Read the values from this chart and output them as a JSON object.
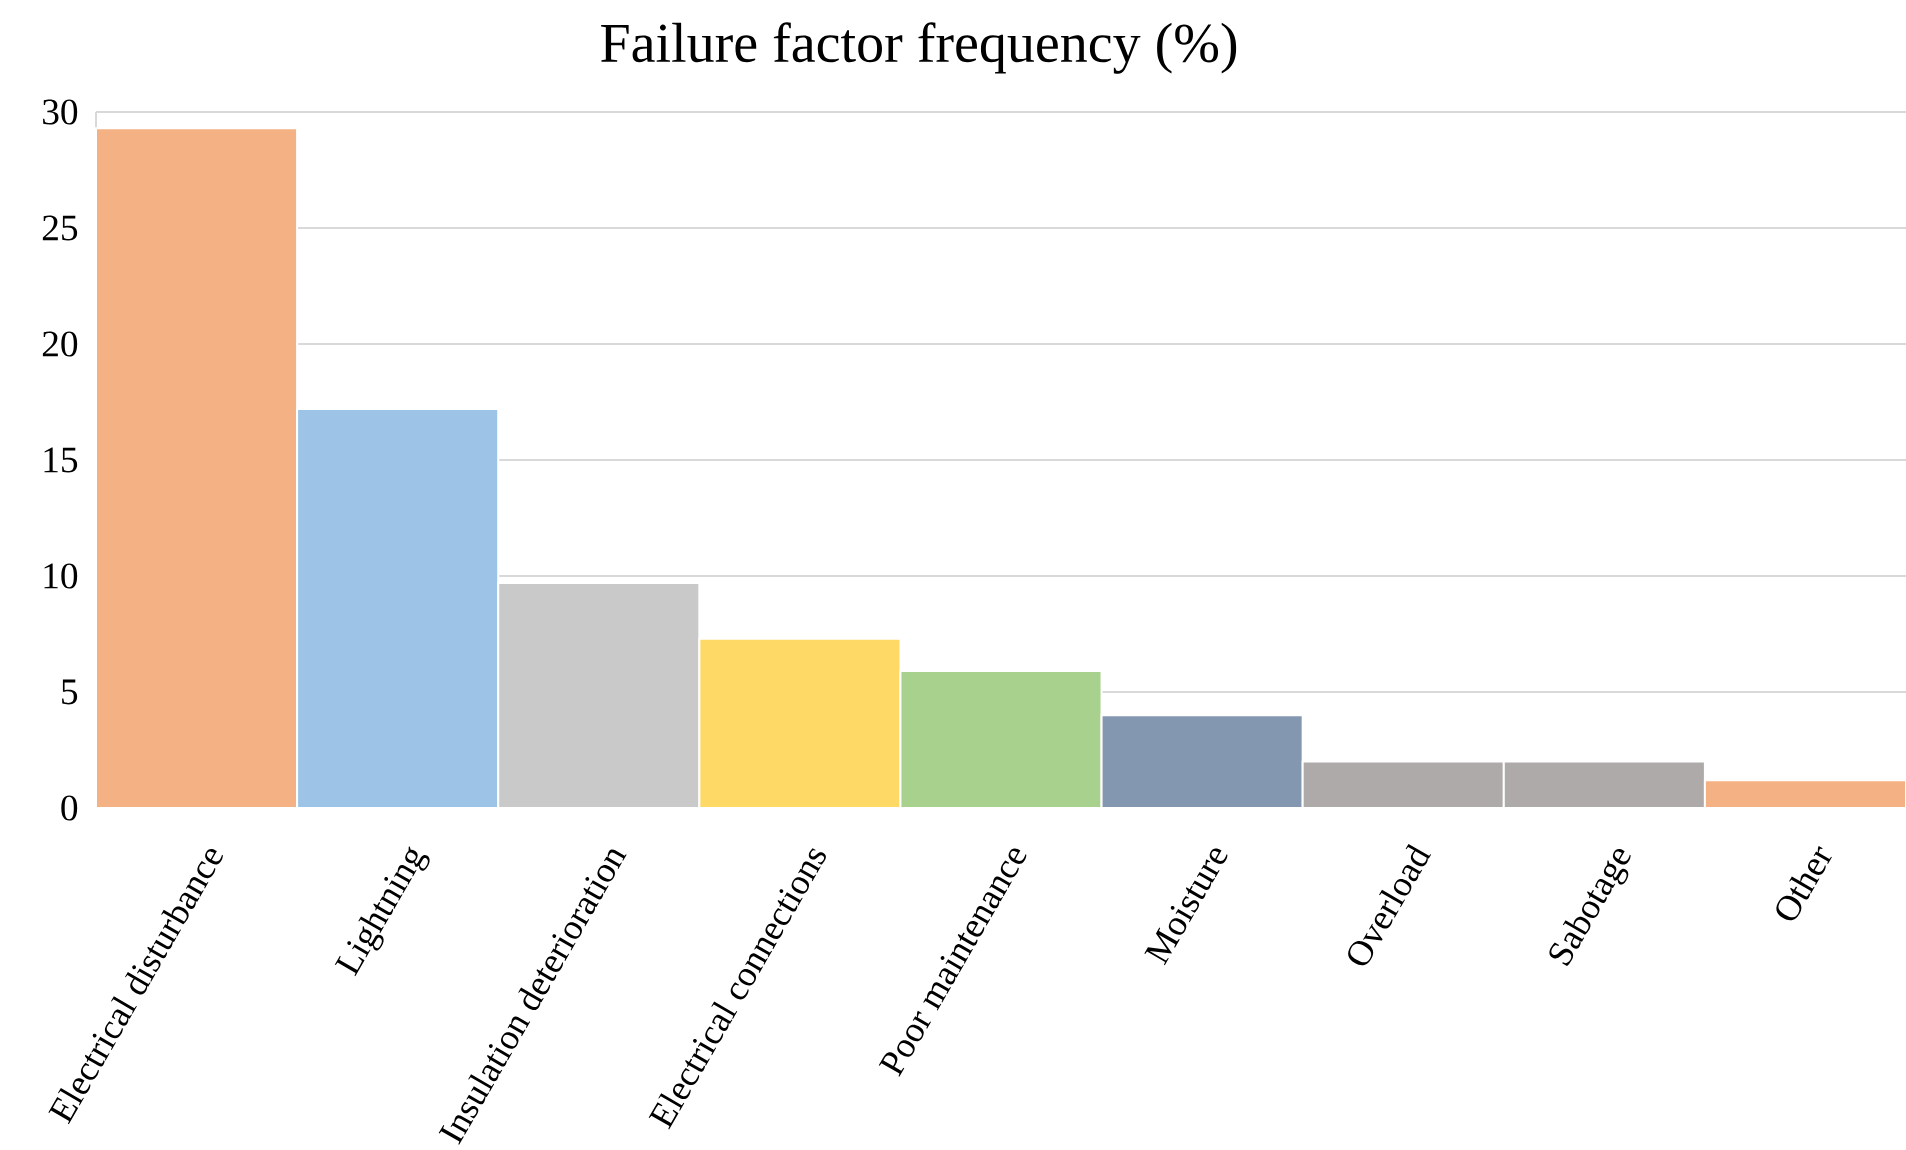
{
  "chart_data": {
    "type": "bar",
    "title": "Failure factor frequency (%)",
    "categories": [
      "Electrical disturbance",
      "Lightning",
      "Insulation deterioration",
      "Electrical connections",
      "Poor maintenance",
      "Moisture",
      "Overload",
      "Sabotage",
      "Other"
    ],
    "values": [
      29.3,
      17.2,
      9.7,
      7.3,
      5.9,
      4.0,
      2.0,
      2.0,
      1.2
    ],
    "colors": [
      "#f4b183",
      "#9dc3e6",
      "#c9c9c9",
      "#ffd966",
      "#a9d18e",
      "#8497b0",
      "#aeaaaa",
      "#aeaaaa",
      "#f4b183"
    ],
    "ylim": [
      0,
      30
    ],
    "yticks": [
      0,
      5,
      10,
      15,
      20,
      25,
      30
    ],
    "grid": "y"
  }
}
